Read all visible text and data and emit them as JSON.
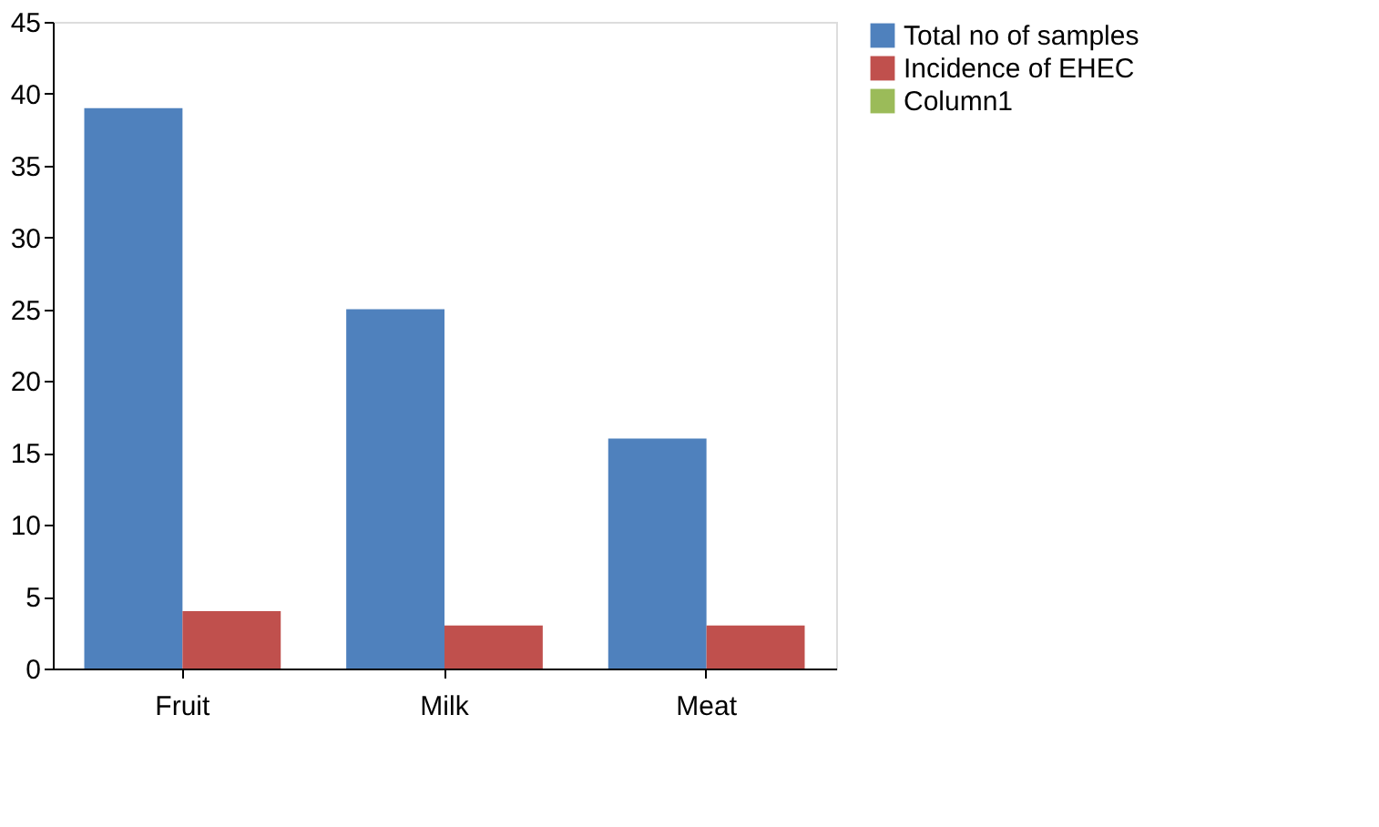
{
  "chart_data": {
    "type": "bar",
    "categories": [
      "Fruit",
      "Milk",
      "Meat"
    ],
    "series": [
      {
        "name": "Total no of samples",
        "color": "#4f81bd",
        "values": [
          39,
          25,
          16
        ]
      },
      {
        "name": "Incidence of EHEC",
        "color": "#c0504d",
        "values": [
          4,
          3,
          3
        ]
      },
      {
        "name": "Column1",
        "color": "#9bbb59",
        "values": [
          null,
          null,
          null
        ]
      }
    ],
    "ylim": [
      0,
      45
    ],
    "yticks": [
      0,
      5,
      10,
      15,
      20,
      25,
      30,
      35,
      40,
      45
    ],
    "grid": false,
    "legend": "right"
  }
}
